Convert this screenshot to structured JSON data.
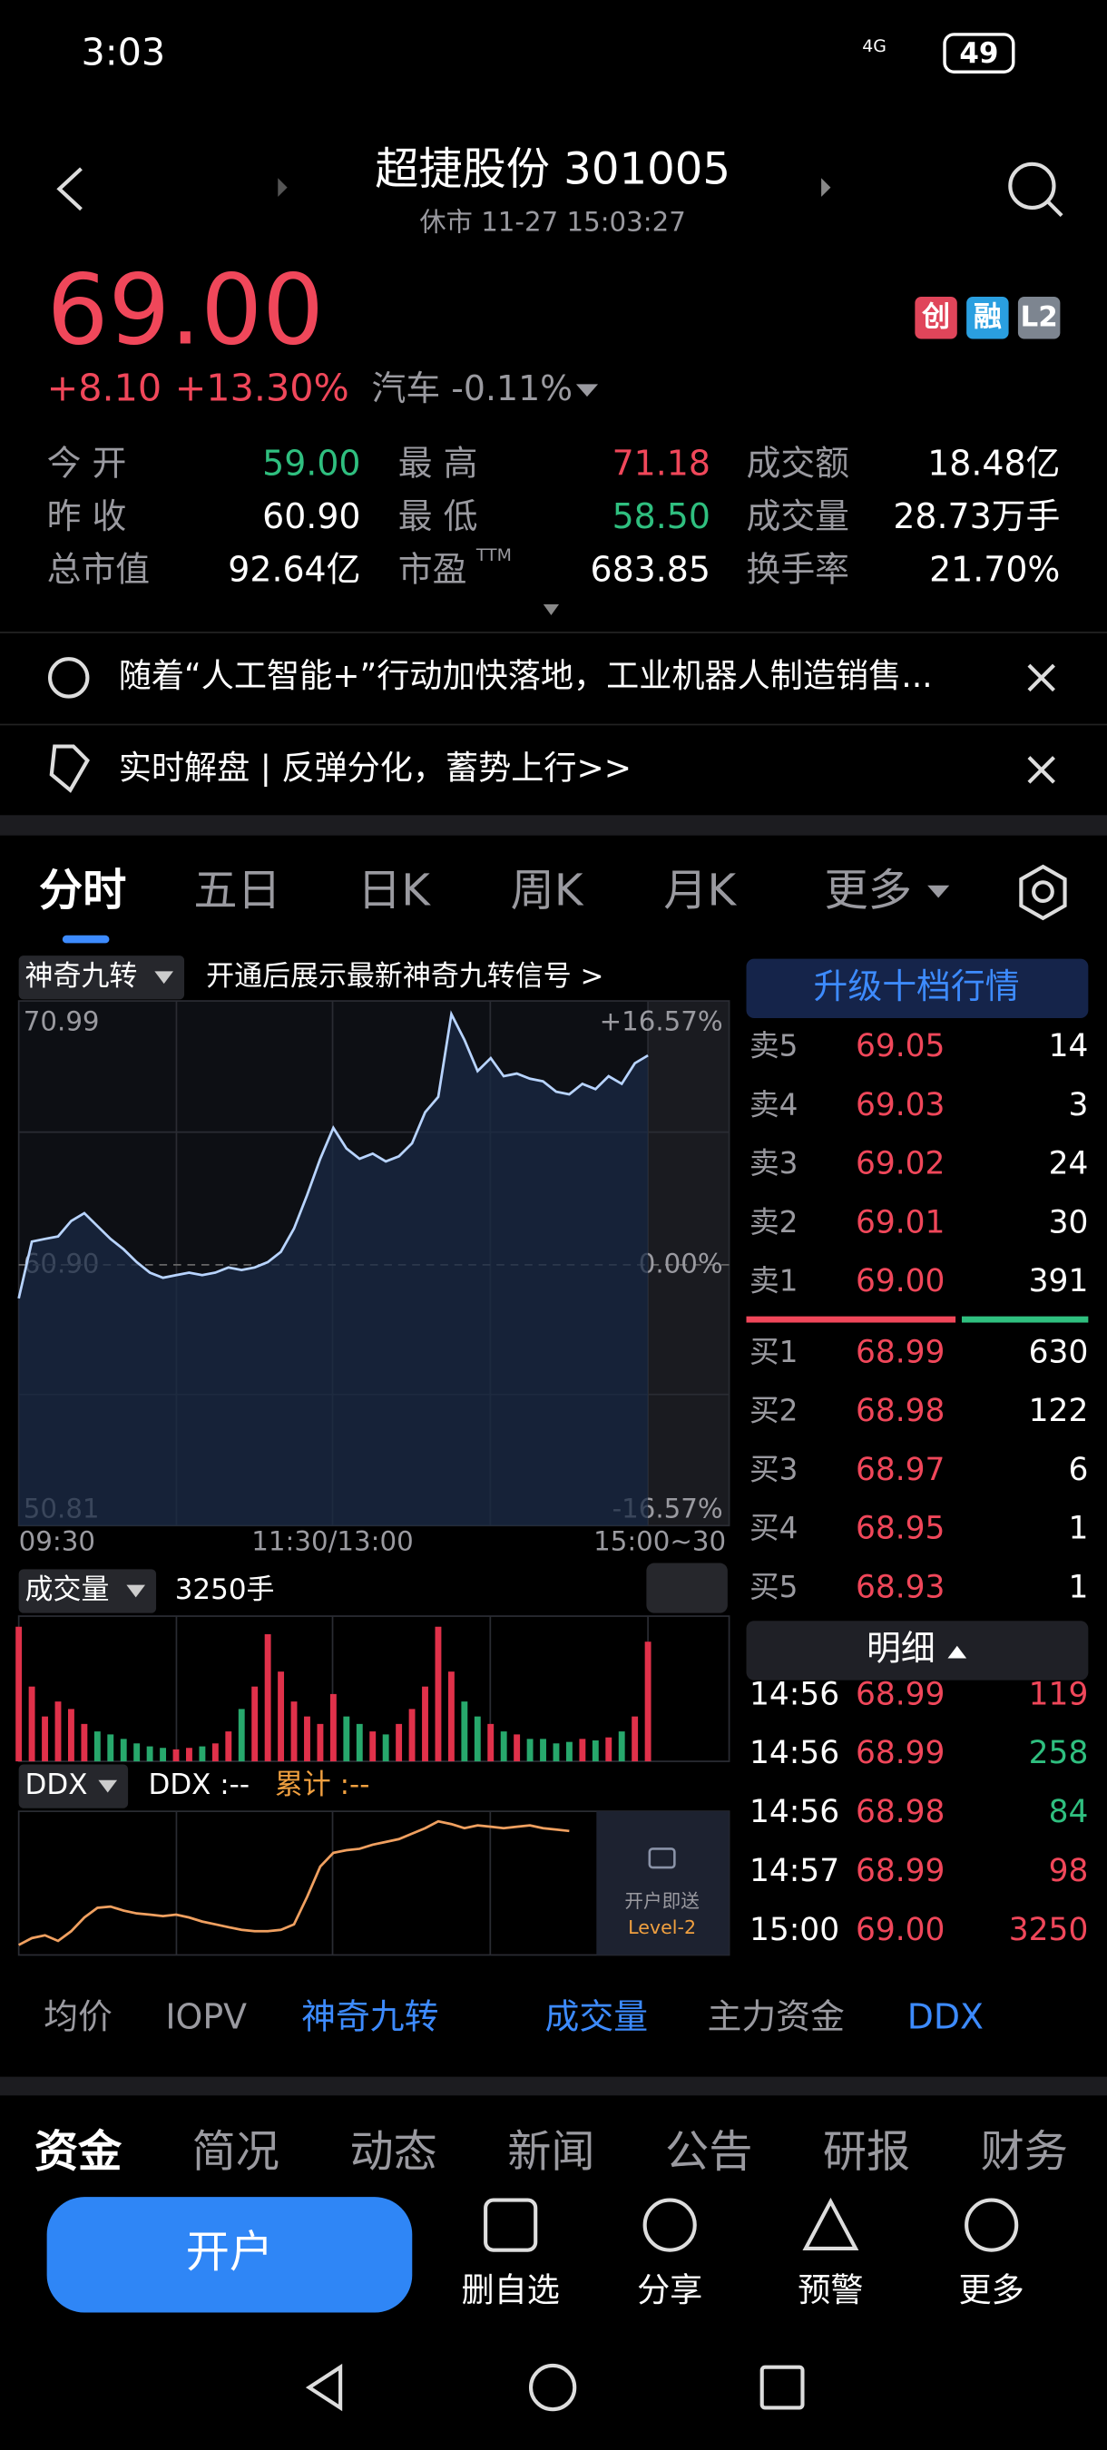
{
  "status_bar": {
    "time": "3:03",
    "network": "4G",
    "battery": "49"
  },
  "header": {
    "title": "超捷股份 301005",
    "subtitle": "休市 11-27 15:03:27"
  },
  "badges": [
    "创",
    "融",
    "L2"
  ],
  "quote": {
    "price": "69.00",
    "change": "+8.10",
    "change_pct": "+13.30%",
    "sector": "汽车 -0.11%"
  },
  "stats": [
    [
      {
        "label": "今 开",
        "value": "59.00"
      },
      {
        "label": "最 高",
        "value": "71.18"
      },
      {
        "label": "成交额",
        "value": "18.48亿"
      }
    ],
    [
      {
        "label": "昨 收",
        "value": "60.90"
      },
      {
        "label": "最 低",
        "value": "58.50"
      },
      {
        "label": "成交量",
        "value": "28.73万手"
      }
    ],
    [
      {
        "label": "总市值",
        "value": "92.64亿"
      },
      {
        "label": "市盈",
        "sup": "TTM",
        "value": "683.85"
      },
      {
        "label": "换手率",
        "value": "21.70%"
      }
    ]
  ],
  "news": [
    "随着“人工智能+”行动加快落地，工业机器人制造销售...",
    "实时解盘 | 反弹分化，蓄势上行>>"
  ],
  "period_tabs": [
    "分时",
    "五日",
    "日K",
    "周K",
    "月K",
    "更多"
  ],
  "intraday": {
    "indicator": "神奇九转",
    "hint": "开通后展示最新神奇九转信号 >",
    "ylim": [
      50.81,
      70.99
    ],
    "yticks": [
      70.99,
      {
        "value": 60.9,
        "label": "60.90"
      },
      50.81
    ],
    "pct_lim": [
      -16.57,
      16.57
    ],
    "pct_ticks": [
      {
        "value": 16.57,
        "label": "+16.57%"
      },
      {
        "value": 0,
        "label": "0.00%"
      },
      {
        "value": -16.57,
        "label": "-16.57%"
      }
    ],
    "x_labels": [
      "09:30",
      "11:30/13:00",
      "15:00~30"
    ],
    "prices": [
      59.6,
      61.8,
      61.9,
      62.0,
      62.6,
      62.9,
      62.4,
      61.9,
      61.5,
      61.0,
      60.6,
      60.4,
      60.5,
      60.6,
      60.5,
      60.6,
      60.8,
      60.7,
      60.8,
      61.0,
      61.4,
      62.3,
      63.6,
      65.0,
      66.2,
      65.4,
      65.0,
      65.2,
      64.9,
      65.1,
      65.6,
      66.8,
      67.4,
      70.6,
      69.6,
      68.4,
      68.9,
      68.2,
      68.3,
      68.1,
      68.0,
      67.6,
      67.5,
      67.9,
      67.7,
      68.2,
      67.9,
      68.7,
      69.0
    ]
  },
  "volume": {
    "label": "成交量",
    "value": "3250手",
    "ylim": [
      0,
      9500
    ],
    "values": [
      9000,
      5000,
      3000,
      4000,
      3500,
      2500,
      2000,
      1800,
      1500,
      1200,
      1000,
      900,
      800,
      900,
      1000,
      1200,
      2000,
      3500,
      5000,
      8500,
      6000,
      4000,
      3000,
      2500,
      4500,
      3000,
      2500,
      2000,
      1800,
      2500,
      3500,
      5000,
      9000,
      6000,
      4000,
      3000,
      2500,
      2000,
      1800,
      1500,
      1500,
      1200,
      1300,
      1500,
      1400,
      1600,
      2000,
      3000,
      8000
    ]
  },
  "ddx": {
    "label": "DDX",
    "current": "DDX :--",
    "cumulative": "累计 :--",
    "lock_text": "开户即送",
    "lock_level": "Level-2",
    "ylim": [
      0,
      1
    ],
    "values": [
      0.05,
      0.1,
      0.12,
      0.08,
      0.15,
      0.25,
      0.32,
      0.33,
      0.3,
      0.28,
      0.27,
      0.26,
      0.27,
      0.25,
      0.22,
      0.2,
      0.18,
      0.16,
      0.15,
      0.15,
      0.16,
      0.2,
      0.4,
      0.62,
      0.72,
      0.74,
      0.75,
      0.78,
      0.8,
      0.82,
      0.86,
      0.9,
      0.95,
      0.93,
      0.9,
      0.92,
      0.91,
      0.9,
      0.91,
      0.92,
      0.9,
      0.89,
      0.88
    ]
  },
  "order_book": {
    "title": "升级十档行情",
    "asks": [
      {
        "label": "卖5",
        "price": "69.05",
        "volume": "14"
      },
      {
        "label": "卖4",
        "price": "69.03",
        "volume": "3"
      },
      {
        "label": "卖3",
        "price": "69.02",
        "volume": "24"
      },
      {
        "label": "卖2",
        "price": "69.01",
        "volume": "30"
      },
      {
        "label": "卖1",
        "price": "69.00",
        "volume": "391"
      }
    ],
    "bids": [
      {
        "label": "买1",
        "price": "68.99",
        "volume": "630"
      },
      {
        "label": "买2",
        "price": "68.98",
        "volume": "122"
      },
      {
        "label": "买3",
        "price": "68.97",
        "volume": "6"
      },
      {
        "label": "买4",
        "price": "68.95",
        "volume": "1"
      },
      {
        "label": "买5",
        "price": "68.93",
        "volume": "1"
      }
    ]
  },
  "trades": {
    "title": "明细",
    "rows": [
      {
        "time": "14:56",
        "price": "68.99",
        "volume": "119"
      },
      {
        "time": "14:56",
        "price": "68.99",
        "volume": "258"
      },
      {
        "time": "14:56",
        "price": "68.98",
        "volume": "84"
      },
      {
        "time": "14:57",
        "price": "68.99",
        "volume": "98"
      },
      {
        "time": "15:00",
        "price": "69.00",
        "volume": "3250"
      }
    ]
  },
  "indicator_tabs": [
    "均价",
    "IOPV",
    "神奇九转",
    "成交量",
    "主力资金",
    "DDX"
  ],
  "info_tabs": [
    "资金",
    "简况",
    "动态",
    "新闻",
    "公告",
    "研报",
    "财务"
  ],
  "actions": {
    "open_account": "开户",
    "items": [
      "删自选",
      "分享",
      "预警",
      "更多"
    ]
  }
}
